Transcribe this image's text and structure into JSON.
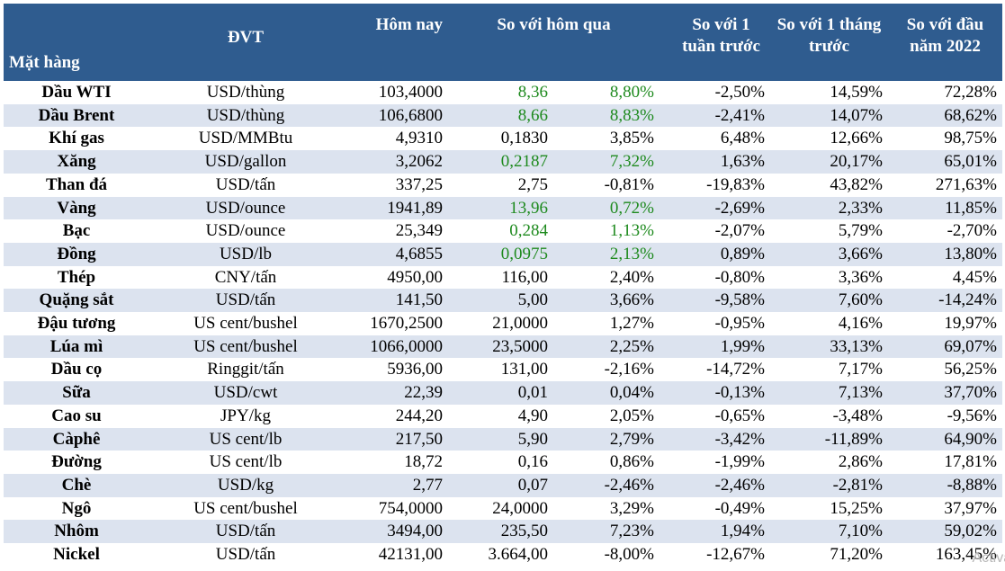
{
  "headers": {
    "item": "Mặt hàng",
    "unit": "ĐVT",
    "today": "Hôm nay",
    "vs_yesterday": "So với hôm qua",
    "vs_week": "So với 1 tuần trước",
    "vs_month": "So với 1 tháng trước",
    "vs_year_start": "So với đầu năm 2022"
  },
  "colors": {
    "header_bg": "#2f5c8f",
    "alt_row_bg": "#dce3ef",
    "positive_green": "#1e8a1e"
  },
  "rows": [
    {
      "name": "Dầu WTI",
      "unit": "USD/thùng",
      "today": "103,4000",
      "chg": "8,36",
      "pct": "8,80%",
      "week": "-2,50%",
      "month": "14,59%",
      "ytd": "72,28%",
      "green": true
    },
    {
      "name": "Dầu Brent",
      "unit": "USD/thùng",
      "today": "106,6800",
      "chg": "8,66",
      "pct": "8,83%",
      "week": "-2,41%",
      "month": "14,07%",
      "ytd": "68,62%",
      "green": true
    },
    {
      "name": "Khí gas",
      "unit": "USD/MMBtu",
      "today": "4,9310",
      "chg": "0,1830",
      "pct": "3,85%",
      "week": "6,48%",
      "month": "12,66%",
      "ytd": "98,75%",
      "green": false
    },
    {
      "name": "Xăng",
      "unit": "USD/gallon",
      "today": "3,2062",
      "chg": "0,2187",
      "pct": "7,32%",
      "week": "1,63%",
      "month": "20,17%",
      "ytd": "65,01%",
      "green": true
    },
    {
      "name": "Than đá",
      "unit": "USD/tấn",
      "today": "337,25",
      "chg": "2,75",
      "pct": "-0,81%",
      "week": "-19,83%",
      "month": "43,82%",
      "ytd": "271,63%",
      "green": false
    },
    {
      "name": "Vàng",
      "unit": "USD/ounce",
      "today": "1941,89",
      "chg": "13,96",
      "pct": "0,72%",
      "week": "-2,69%",
      "month": "2,33%",
      "ytd": "11,85%",
      "green": true
    },
    {
      "name": "Bạc",
      "unit": "USD/ounce",
      "today": "25,349",
      "chg": "0,284",
      "pct": "1,13%",
      "week": "-2,07%",
      "month": "5,79%",
      "ytd": "-2,70%",
      "green": true
    },
    {
      "name": "Đồng",
      "unit": "USD/lb",
      "today": "4,6855",
      "chg": "0,0975",
      "pct": "2,13%",
      "week": "0,89%",
      "month": "3,66%",
      "ytd": "13,80%",
      "green": true
    },
    {
      "name": "Thép",
      "unit": "CNY/tấn",
      "today": "4950,00",
      "chg": "116,00",
      "pct": "2,40%",
      "week": "-0,80%",
      "month": "3,36%",
      "ytd": "4,45%",
      "green": false
    },
    {
      "name": "Quặng sắt",
      "unit": "USD/tấn",
      "today": "141,50",
      "chg": "5,00",
      "pct": "3,66%",
      "week": "-9,58%",
      "month": "7,60%",
      "ytd": "-14,24%",
      "green": false
    },
    {
      "name": "Đậu tương",
      "unit": "US cent/bushel",
      "today": "1670,2500",
      "chg": "21,0000",
      "pct": "1,27%",
      "week": "-0,95%",
      "month": "4,16%",
      "ytd": "19,97%",
      "green": false
    },
    {
      "name": "Lúa mì",
      "unit": "US cent/bushel",
      "today": "1066,0000",
      "chg": "23,5000",
      "pct": "2,25%",
      "week": "1,99%",
      "month": "33,13%",
      "ytd": "69,07%",
      "green": false
    },
    {
      "name": "Dầu cọ",
      "unit": "Ringgit/tấn",
      "today": "5936,00",
      "chg": "131,00",
      "pct": "-2,16%",
      "week": "-14,72%",
      "month": "7,17%",
      "ytd": "56,25%",
      "green": false
    },
    {
      "name": "Sữa",
      "unit": "USD/cwt",
      "today": "22,39",
      "chg": "0,01",
      "pct": "0,04%",
      "week": "-0,13%",
      "month": "7,13%",
      "ytd": "37,70%",
      "green": false
    },
    {
      "name": "Cao su",
      "unit": "JPY/kg",
      "today": "244,20",
      "chg": "4,90",
      "pct": "2,05%",
      "week": "-0,65%",
      "month": "-3,48%",
      "ytd": "-9,56%",
      "green": false
    },
    {
      "name": "Càphê",
      "unit": "US cent/lb",
      "today": "217,50",
      "chg": "5,90",
      "pct": "2,79%",
      "week": "-3,42%",
      "month": "-11,89%",
      "ytd": "64,90%",
      "green": false
    },
    {
      "name": "Đường",
      "unit": "US cent/lb",
      "today": "18,72",
      "chg": "0,16",
      "pct": "0,86%",
      "week": "-1,99%",
      "month": "2,86%",
      "ytd": "17,81%",
      "green": false
    },
    {
      "name": "Chè",
      "unit": "USD/kg",
      "today": "2,77",
      "chg": "0,07",
      "pct": "-2,46%",
      "week": "-2,46%",
      "month": "-2,81%",
      "ytd": "-8,88%",
      "green": false
    },
    {
      "name": "Ngô",
      "unit": "US cent/bushel",
      "today": "754,0000",
      "chg": "24,0000",
      "pct": "3,29%",
      "week": "-0,49%",
      "month": "15,25%",
      "ytd": "37,97%",
      "green": false
    },
    {
      "name": "Nhôm",
      "unit": "USD/tấn",
      "today": "3494,00",
      "chg": "235,50",
      "pct": "7,23%",
      "week": "1,94%",
      "month": "7,10%",
      "ytd": "59,02%",
      "green": false
    },
    {
      "name": "Nickel",
      "unit": "USD/tấn",
      "today": "42131,00",
      "chg": "3.664,00",
      "pct": "-8,00%",
      "week": "-12,67%",
      "month": "71,20%",
      "ytd": "163,45%",
      "green": false
    }
  ],
  "watermark": "Activate W"
}
